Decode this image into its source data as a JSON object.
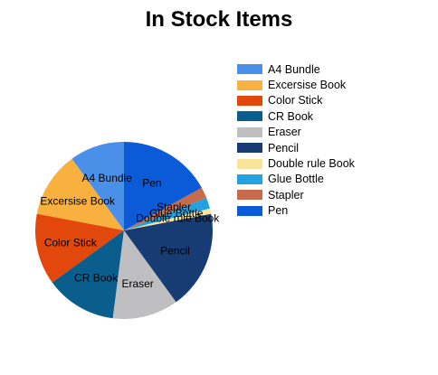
{
  "chart_data": {
    "type": "pie",
    "title": "In Stock Items",
    "legend_position": "right",
    "slices": [
      {
        "name": "A4 Bundle",
        "value": 10,
        "color": "#4A90E8"
      },
      {
        "name": "Excersise Book",
        "value": 12,
        "color": "#F8B13E"
      },
      {
        "name": "Color Stick",
        "value": 13,
        "color": "#E2470C"
      },
      {
        "name": "CR Book",
        "value": 13,
        "color": "#0A5E8E"
      },
      {
        "name": "Eraser",
        "value": 12,
        "color": "#BFBFC1"
      },
      {
        "name": "Pencil",
        "value": 18,
        "color": "#173C73"
      },
      {
        "name": "Double rule Book",
        "value": 1,
        "color": "#FAE39A"
      },
      {
        "name": "Glue Bottle",
        "value": 2,
        "color": "#22A2E0"
      },
      {
        "name": "Stapler",
        "value": 2,
        "color": "#C76B4D"
      },
      {
        "name": "Pen",
        "value": 17,
        "color": "#0B5BD9"
      }
    ]
  }
}
